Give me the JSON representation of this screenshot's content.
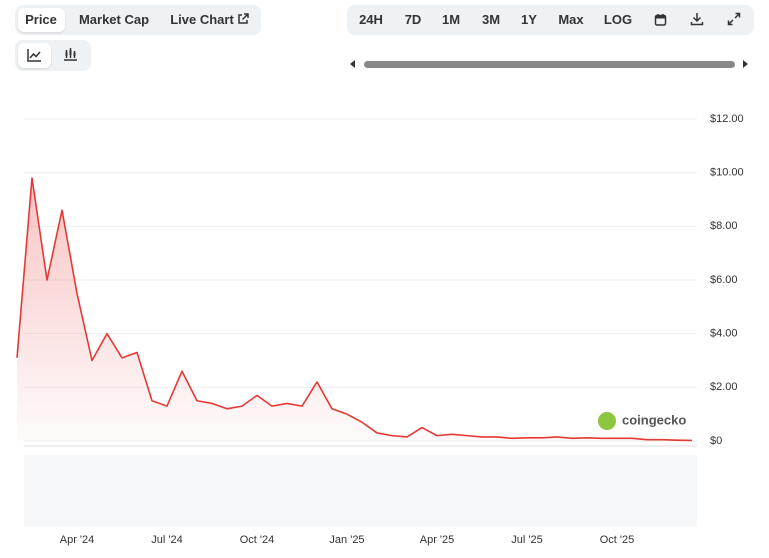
{
  "tabs": [
    "Price",
    "Market Cap",
    "Live Chart"
  ],
  "ranges": [
    "24H",
    "7D",
    "1M",
    "3M",
    "1Y",
    "Max",
    "LOG"
  ],
  "watermark": "coingecko",
  "chart_data": {
    "type": "line",
    "categories": [
      null,
      null,
      null,
      null,
      "Apr '24",
      null,
      null,
      null,
      null,
      null,
      "Jul '24",
      null,
      null,
      null,
      null,
      null,
      "Oct '24",
      null,
      null,
      null,
      null,
      null,
      "Jan '25",
      null,
      null,
      null,
      null,
      null,
      "Apr '25",
      null,
      null,
      null,
      null,
      null,
      "Jul '25",
      null,
      null,
      null,
      null,
      null,
      "Oct '25",
      null,
      null,
      null,
      null,
      null
    ],
    "values": [
      3.1,
      9.8,
      6.0,
      8.6,
      5.5,
      3.0,
      4.0,
      3.1,
      3.3,
      1.5,
      1.3,
      2.6,
      1.5,
      1.4,
      1.2,
      1.3,
      1.7,
      1.3,
      1.4,
      1.3,
      2.2,
      1.2,
      1.0,
      0.7,
      0.3,
      0.2,
      0.15,
      0.5,
      0.2,
      0.25,
      0.2,
      0.15,
      0.15,
      0.1,
      0.12,
      0.12,
      0.15,
      0.1,
      0.12,
      0.1,
      0.1,
      0.1,
      0.05,
      0.05,
      0.03,
      0.02
    ],
    "color": "#e53935",
    "ylim": [
      0,
      12
    ],
    "yticks": [
      {
        "value": 0,
        "label": "$0"
      },
      {
        "value": 2,
        "label": "$2.00"
      },
      {
        "value": 4,
        "label": "$4.00"
      },
      {
        "value": 6,
        "label": "$6.00"
      },
      {
        "value": 8,
        "label": "$8.00"
      },
      {
        "value": 10,
        "label": "$10.00"
      },
      {
        "value": 12,
        "label": "$12.00"
      }
    ],
    "grid": true
  }
}
